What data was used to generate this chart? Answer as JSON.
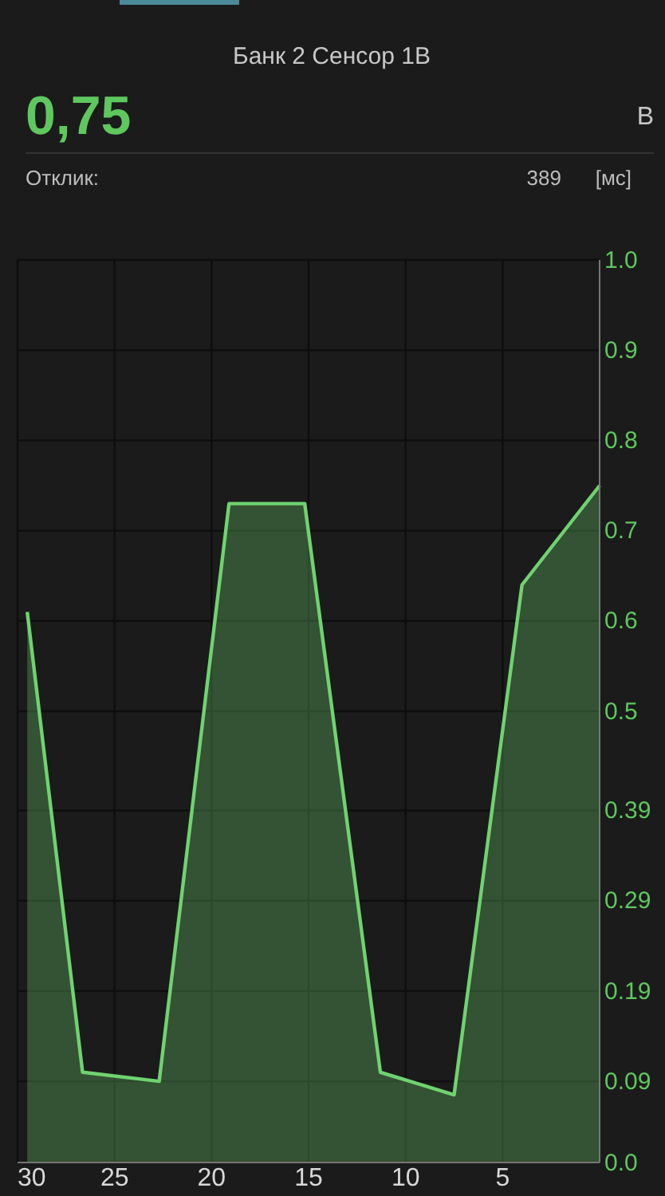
{
  "chart_data": {
    "type": "area",
    "title": "Банк 2 Сенсор 1В",
    "annotations": [
      "0,75",
      "В",
      "Отклик:",
      "389",
      "[мс]"
    ],
    "x": [
      29.5,
      26.65,
      22.7,
      19.1,
      15.2,
      11.3,
      7.5,
      4.0,
      0
    ],
    "series": [
      {
        "color": "#6fd36f",
        "values": [
          0.61,
          0.1,
          0.09,
          0.73,
          0.73,
          0.1,
          0.075,
          0.64,
          0.75
        ]
      }
    ],
    "xlim": [
      30,
      0
    ],
    "xticks": [
      30,
      25,
      20,
      15,
      10,
      5
    ],
    "ylim": [
      0,
      1
    ],
    "yticks": [
      {
        "value": 0,
        "label": "0.0"
      },
      0.09,
      0.19,
      0.29,
      0.39,
      0.5,
      0.6,
      0.7,
      0.8,
      0.9,
      {
        "value": 1,
        "label": "1.0"
      }
    ],
    "grid": true,
    "marker": "none",
    "line_style": "solid"
  }
}
